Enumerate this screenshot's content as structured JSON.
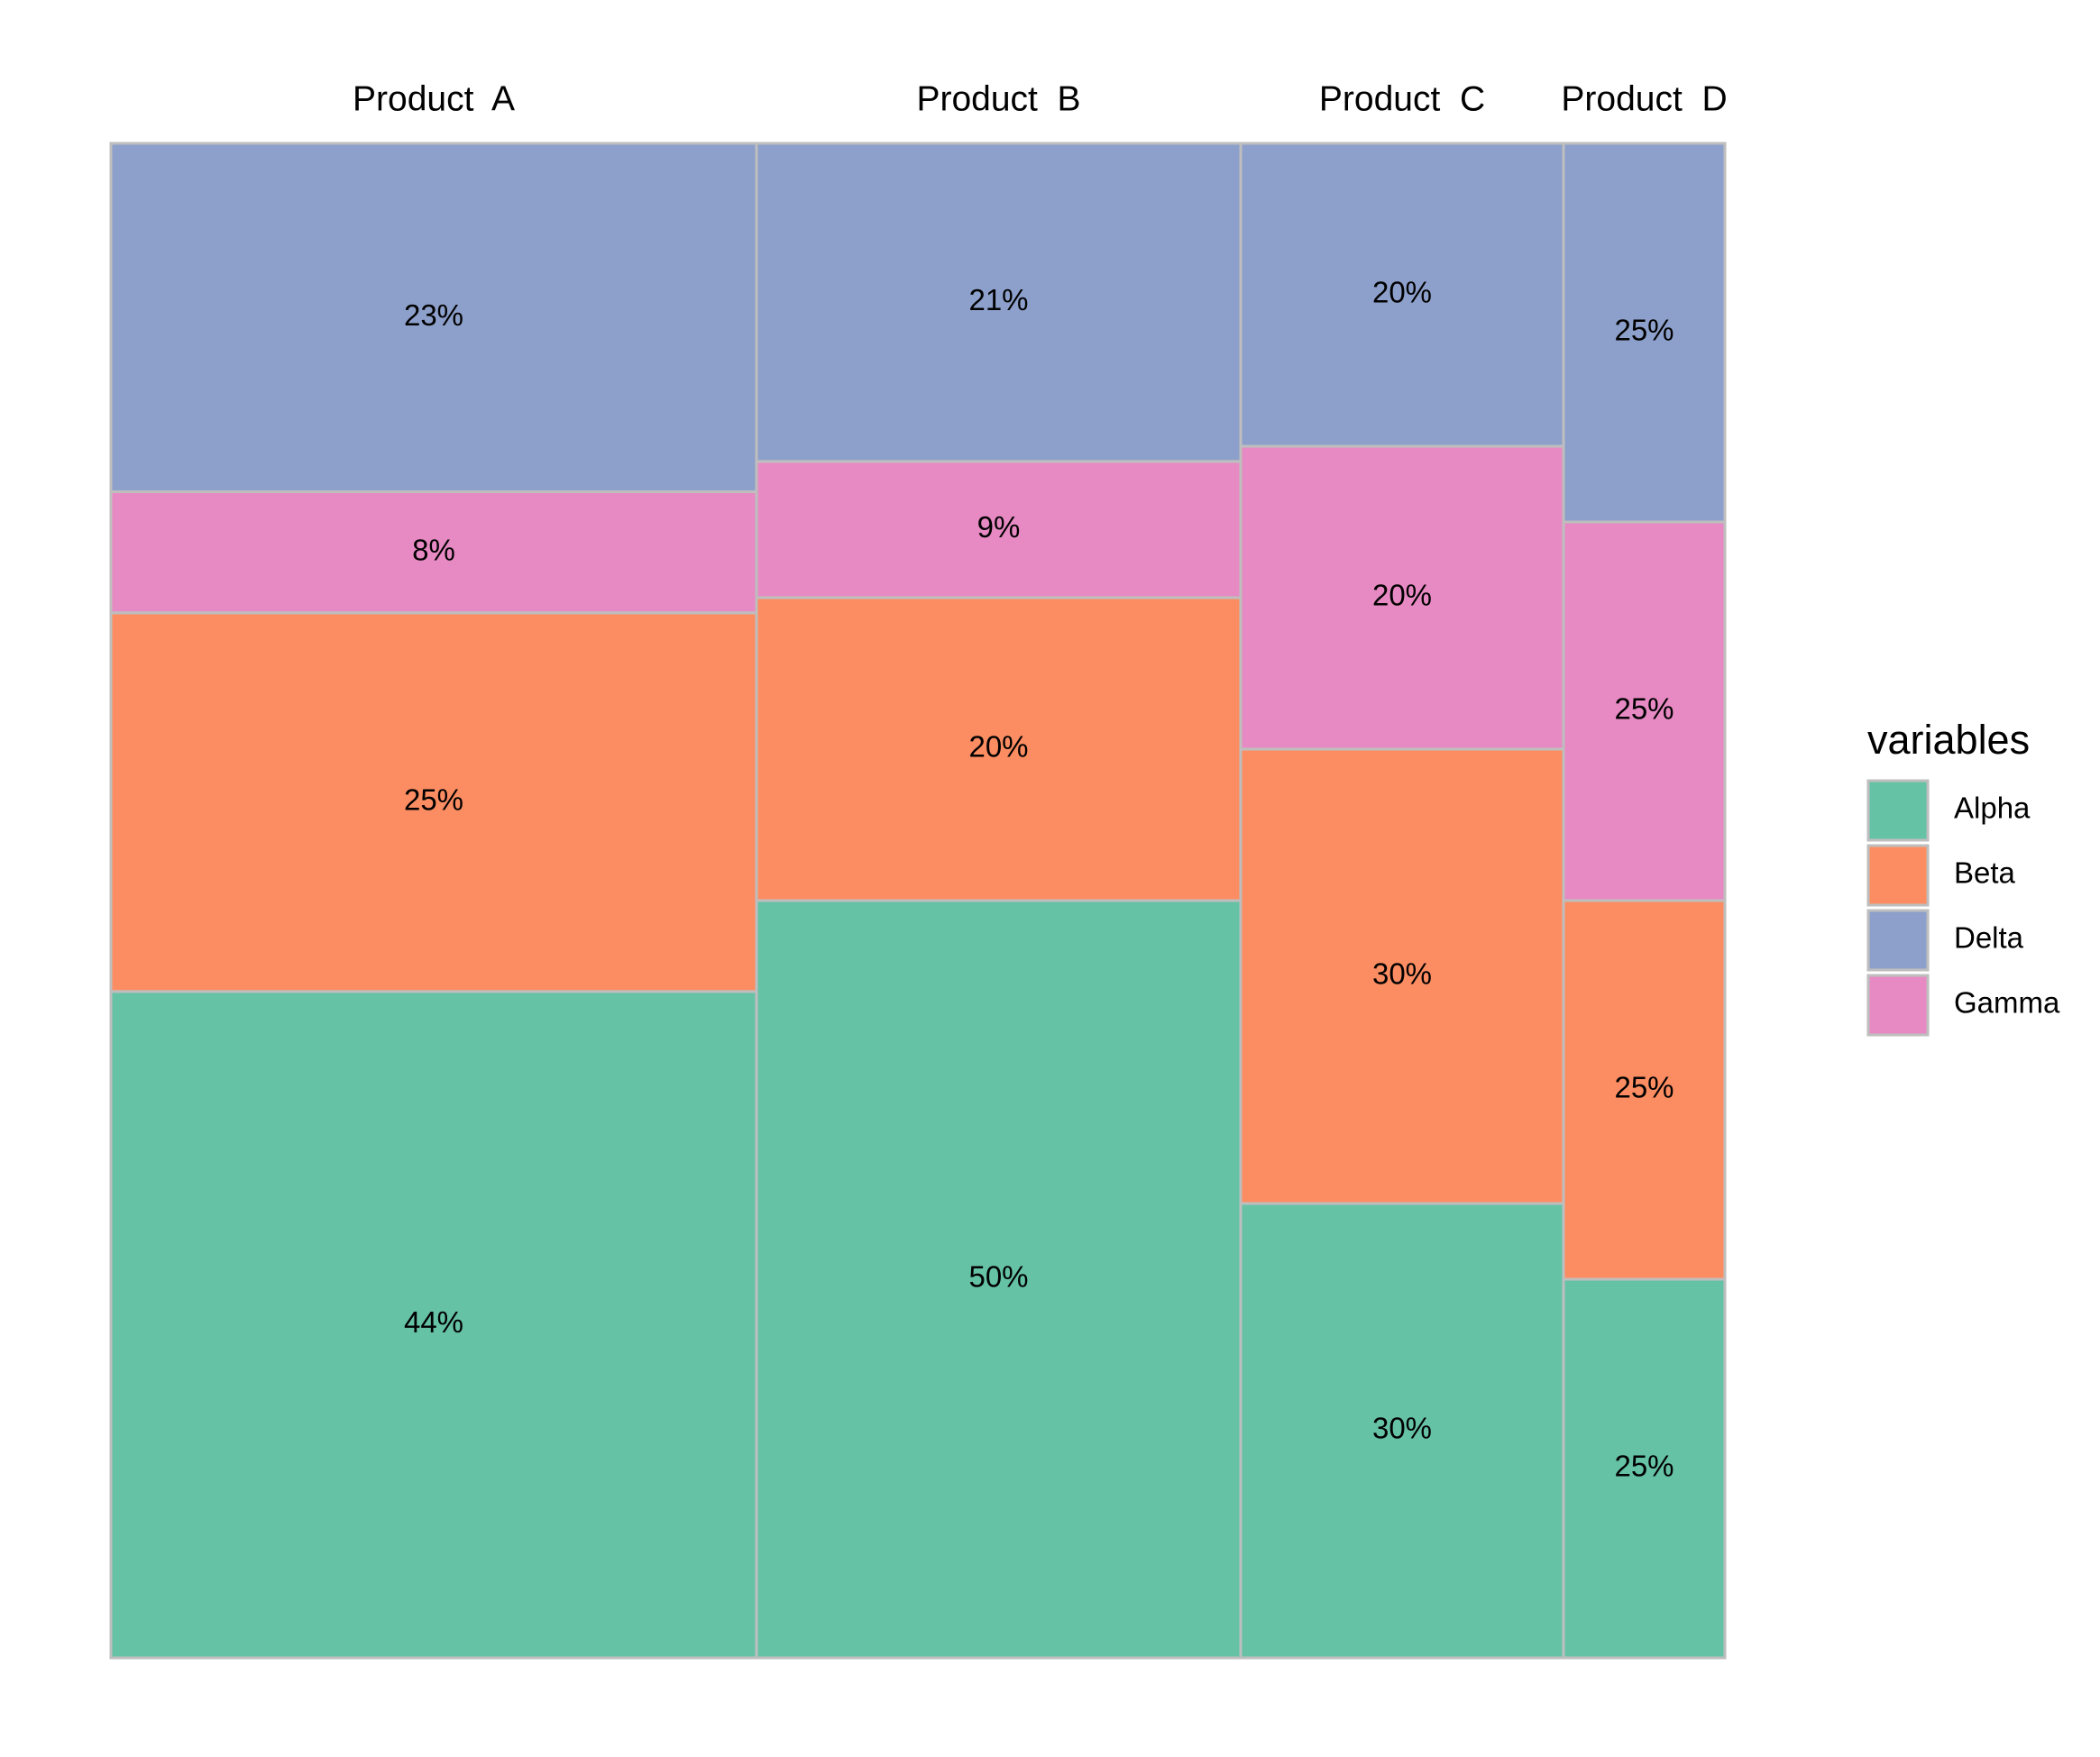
{
  "chart_data": {
    "type": "mosaic",
    "title": "",
    "xlabel": "",
    "ylabel": "",
    "categories": [
      "Product  A",
      "Product  B",
      "Product  C",
      "Product  D"
    ],
    "category_widths": [
      0.4,
      0.3,
      0.2,
      0.1
    ],
    "stack_order_bottom_to_top": [
      "Alpha",
      "Beta",
      "Gamma",
      "Delta"
    ],
    "series": [
      {
        "name": "Alpha",
        "values": [
          44,
          50,
          30,
          25
        ],
        "labels": [
          "44%",
          "50%",
          "30%",
          "25%"
        ]
      },
      {
        "name": "Beta",
        "values": [
          25,
          20,
          30,
          25
        ],
        "labels": [
          "25%",
          "20%",
          "30%",
          "25%"
        ]
      },
      {
        "name": "Gamma",
        "values": [
          8,
          9,
          20,
          25
        ],
        "labels": [
          "8%",
          "9%",
          "20%",
          "25%"
        ]
      },
      {
        "name": "Delta",
        "values": [
          23,
          21,
          20,
          25
        ],
        "labels": [
          "23%",
          "21%",
          "20%",
          "25%"
        ]
      }
    ],
    "legend": {
      "title": "variables",
      "position": "right",
      "entries": [
        "Alpha",
        "Beta",
        "Delta",
        "Gamma"
      ]
    },
    "colors": {
      "Alpha": "#66c2a5",
      "Beta": "#fc8d62",
      "Delta": "#8da0cb",
      "Gamma": "#e78ac3",
      "border": "#bebebe"
    }
  }
}
